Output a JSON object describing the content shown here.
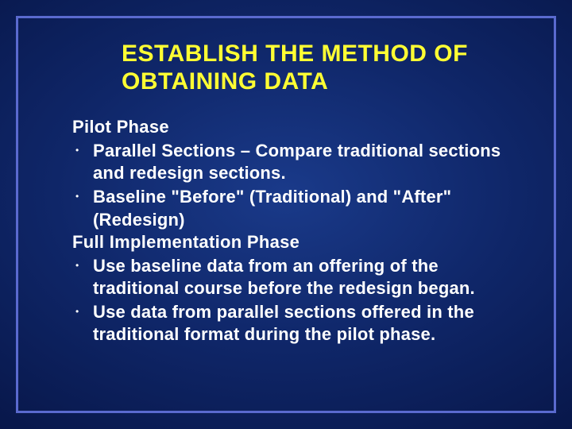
{
  "slide": {
    "title": "ESTABLISH THE METHOD OF OBTAINING DATA",
    "title_color": "#ffff33",
    "title_fontsize": 30,
    "body_color": "#ffffff",
    "body_fontsize": 22,
    "frame_border_color": "#5a6acf",
    "background_gradient_inner": "#1a3a8a",
    "background_gradient_outer": "#061342",
    "sections": [
      {
        "heading": "Pilot Phase",
        "bullets": [
          " Parallel Sections – Compare traditional sections and redesign sections.",
          "Baseline \"Before\" (Traditional) and \"After\" (Redesign)"
        ]
      },
      {
        "heading": "Full Implementation Phase",
        "bullets": [
          "Use baseline data from an offering of the traditional course before the redesign began.",
          "Use data from parallel sections offered in the traditional format during the pilot phase."
        ]
      }
    ]
  }
}
